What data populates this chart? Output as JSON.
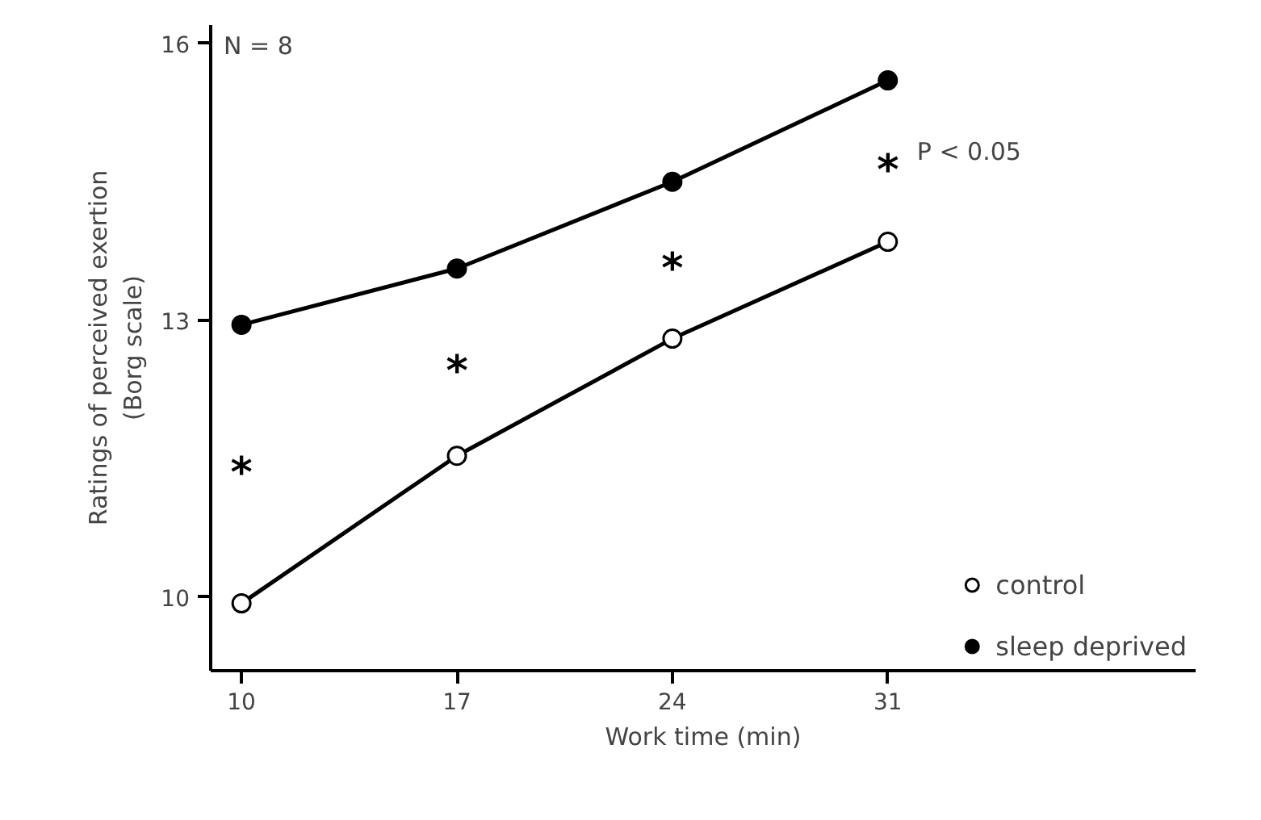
{
  "chart_data": {
    "type": "line",
    "xlabel": "Work time (min)",
    "ylabel": "Ratings of perceived exertion\n(Borg scale)",
    "x": [
      10,
      17,
      24,
      31
    ],
    "series": [
      {
        "name": "control",
        "color": "#ffffff",
        "values": [
          9.93,
          11.53,
          12.8,
          13.85
        ]
      },
      {
        "name": "sleep deprived",
        "color": "#000000",
        "values": [
          12.95,
          13.56,
          14.5,
          15.6
        ]
      }
    ],
    "xlim": [
      9,
      41
    ],
    "ylim": [
      9.2,
      16.2
    ],
    "xticks": [
      10,
      17,
      24,
      31
    ],
    "yticks": [
      10,
      13,
      16
    ],
    "grid": false,
    "legend": "bottom right",
    "marker": "circle",
    "line_style": "solid",
    "annotations": [
      "N = 8",
      "*",
      "*",
      "*",
      "*",
      "P < 0.05"
    ]
  }
}
